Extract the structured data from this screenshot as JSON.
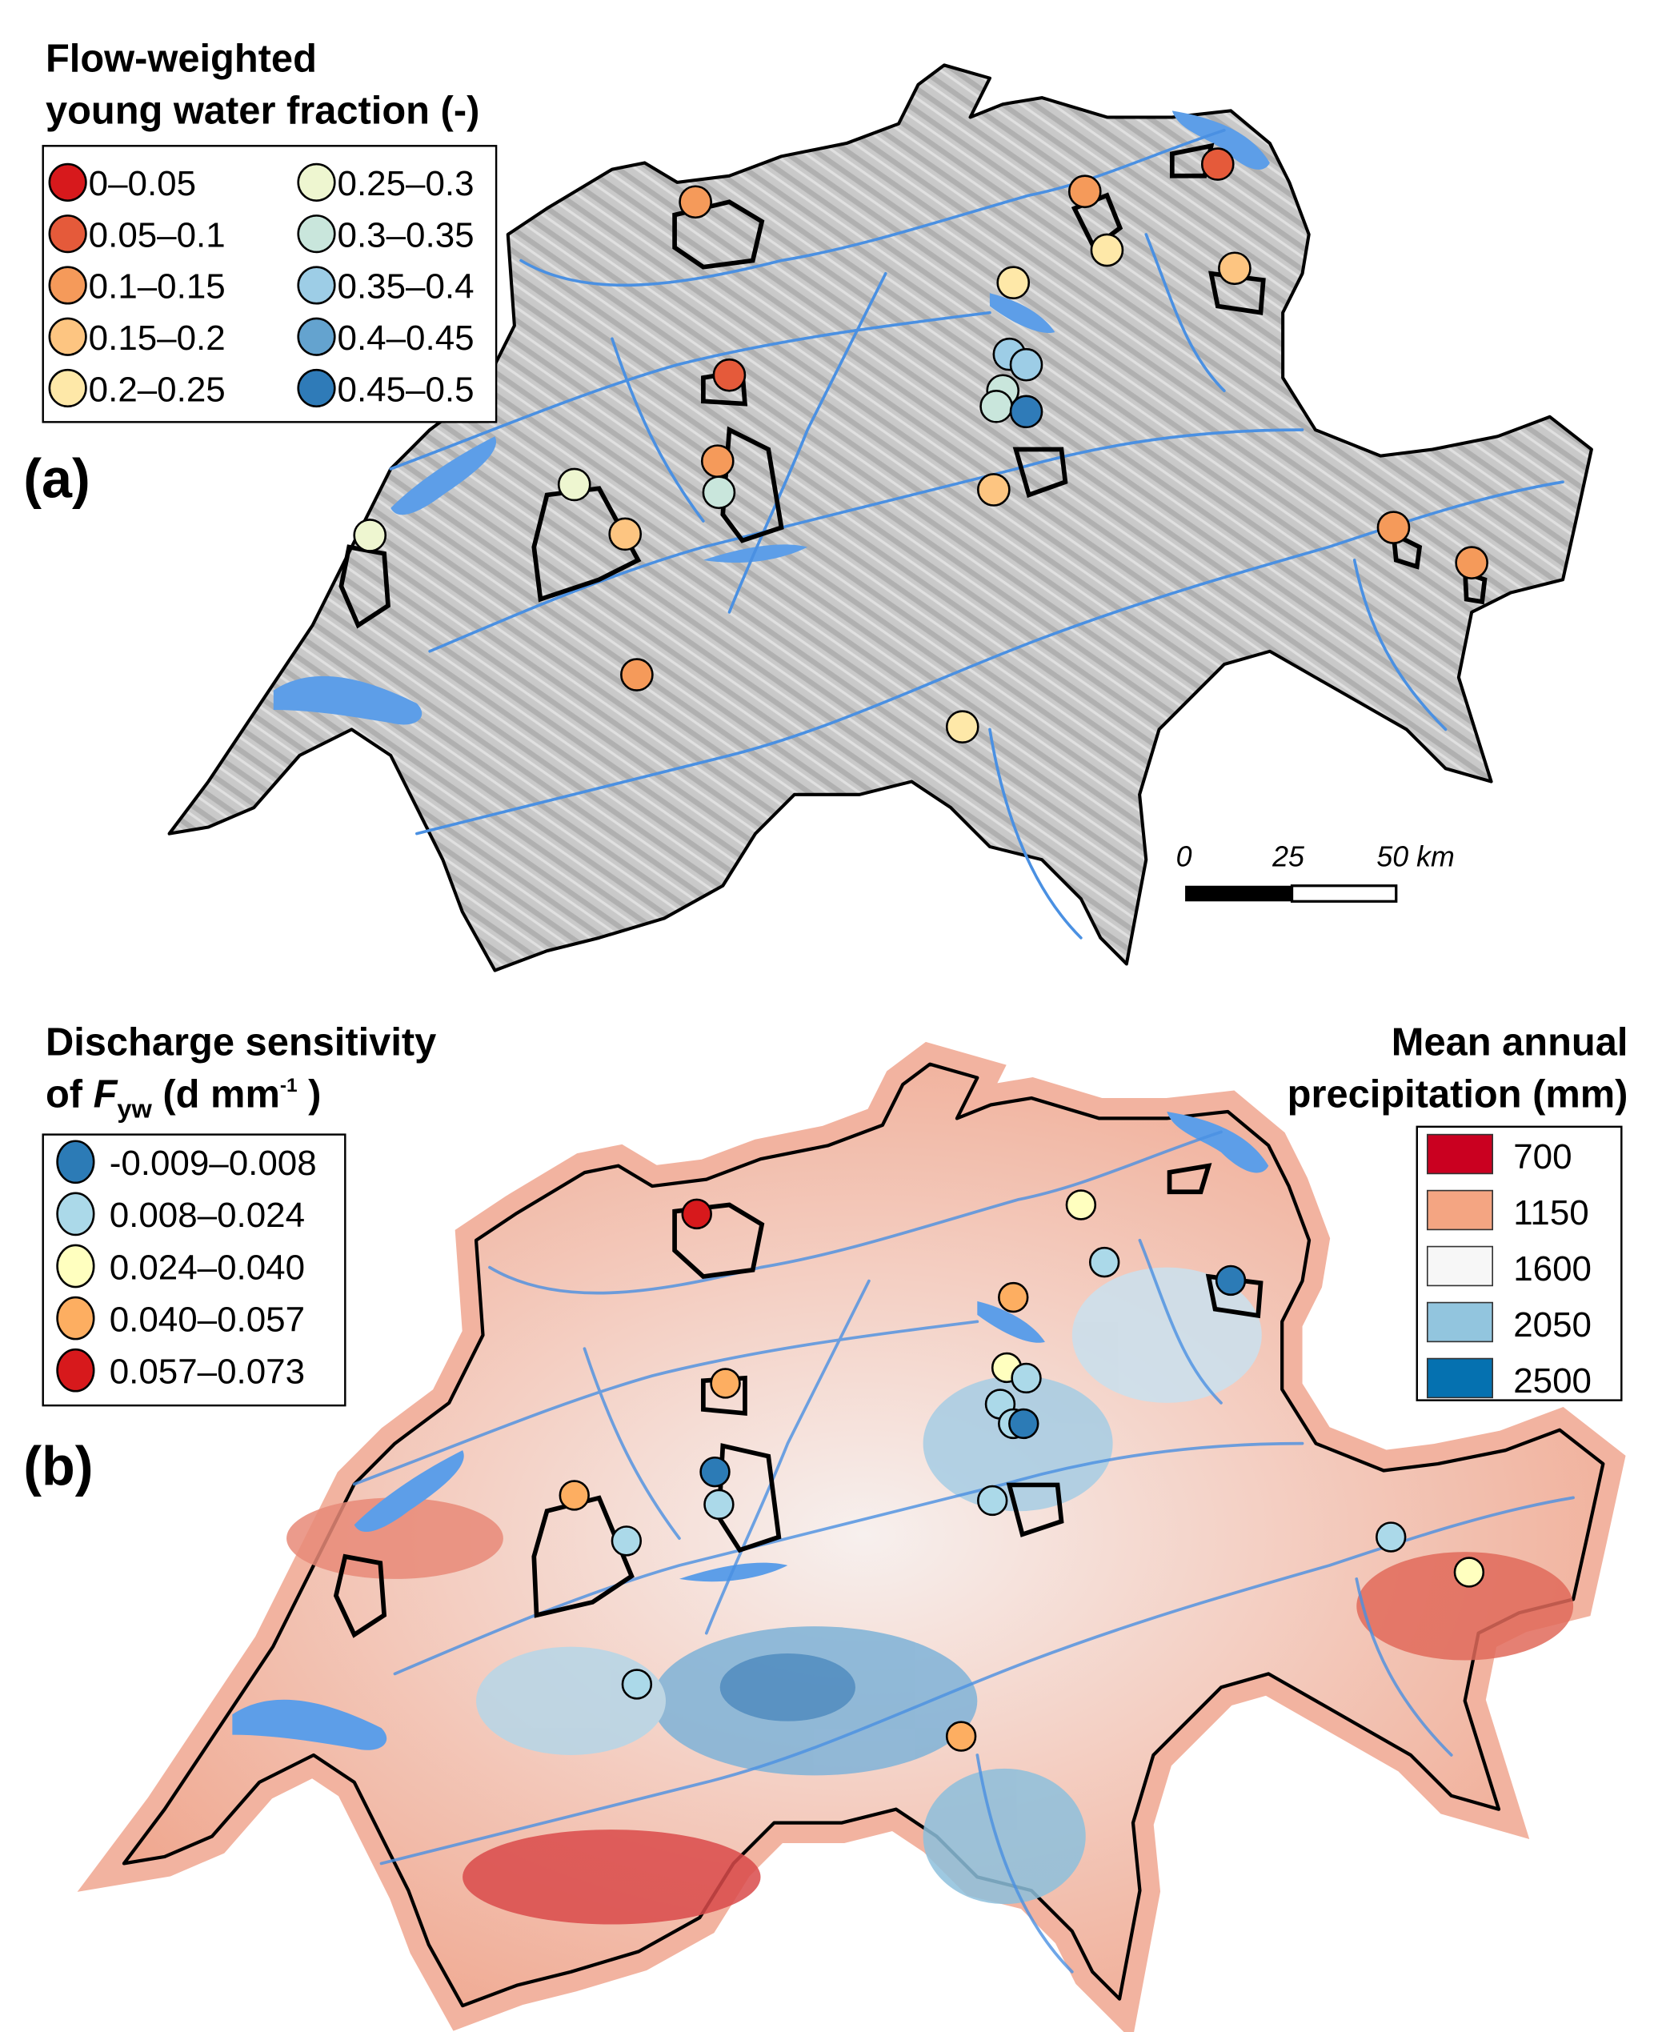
{
  "panel_a": {
    "label": "(a)",
    "legend_title_line1": "Flow-weighted",
    "legend_title_line2": "young water fraction (-)",
    "classes": [
      {
        "label": "0–0.05",
        "color": "#d7191c"
      },
      {
        "label": "0.05–0.1",
        "color": "#e55a3a"
      },
      {
        "label": "0.1–0.15",
        "color": "#f59a5a"
      },
      {
        "label": "0.15–0.2",
        "color": "#fdc581"
      },
      {
        "label": "0.2–0.25",
        "color": "#fee8a8"
      },
      {
        "label": "0.25–0.3",
        "color": "#eef6d0"
      },
      {
        "label": "0.3–0.35",
        "color": "#c9e6dc"
      },
      {
        "label": "0.35–0.4",
        "color": "#9dcde6"
      },
      {
        "label": "0.4–0.45",
        "color": "#64a3cf"
      },
      {
        "label": "0.45–0.5",
        "color": "#2f7bb8"
      }
    ],
    "markers": [
      1,
      2,
      2,
      4,
      3,
      4,
      1,
      7,
      7,
      6,
      6,
      9,
      2,
      6,
      5,
      3,
      3,
      5,
      2,
      2,
      2,
      4
    ],
    "scalebar": {
      "ticks": [
        "0",
        "25",
        "50 km"
      ]
    }
  },
  "panel_b": {
    "label": "(b)",
    "legend_title_line1": "Discharge sensitivity",
    "legend_title_of": "of ",
    "legend_title_F": "F",
    "legend_title_sub": "yw",
    "legend_title_unit": " (d mm",
    "legend_title_sup": "-1",
    "legend_title_close": " )",
    "classes": [
      {
        "label": "-0.009–0.008",
        "color": "#2c7bb6"
      },
      {
        "label": "0.008–0.024",
        "color": "#abd9e9"
      },
      {
        "label": "0.024–0.040",
        "color": "#ffffbf"
      },
      {
        "label": "0.040–0.057",
        "color": "#fdae61"
      },
      {
        "label": "0.057–0.073",
        "color": "#d7191c"
      }
    ],
    "markers": [
      4,
      2,
      1,
      0,
      3,
      3,
      2,
      1,
      1,
      1,
      0,
      0,
      1,
      3,
      1,
      1,
      1,
      2,
      1,
      3
    ],
    "precip_legend": {
      "title_line1": "Mean annual",
      "title_line2": "precipitation (mm)",
      "classes": [
        {
          "label": "700",
          "color": "#ca0020"
        },
        {
          "label": "1150",
          "color": "#f4a582"
        },
        {
          "label": "1600",
          "color": "#f7f7f7"
        },
        {
          "label": "2050",
          "color": "#92c5de"
        },
        {
          "label": "2500",
          "color": "#0571b0"
        }
      ]
    }
  }
}
